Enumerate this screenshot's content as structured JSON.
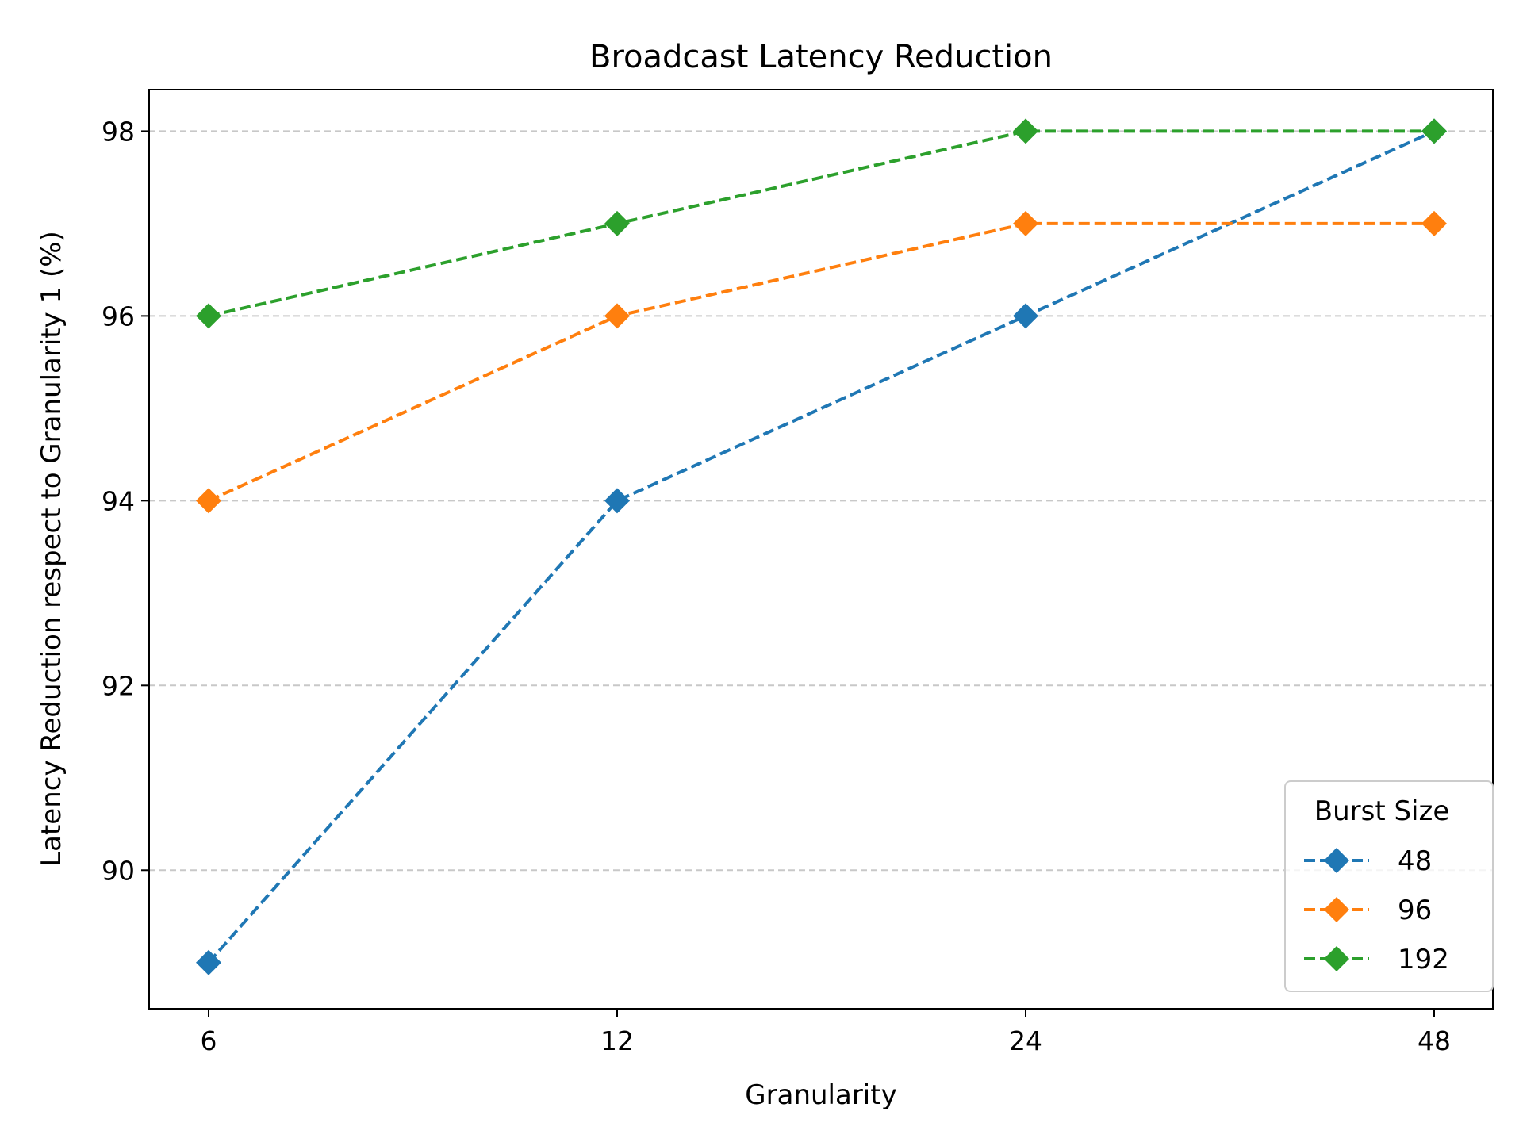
{
  "chart_data": {
    "type": "line",
    "title": "Broadcast Latency Reduction",
    "xlabel": "Granularity",
    "ylabel": "Latency Reduction respect to Granularity 1 (%)",
    "categories": [
      "6",
      "12",
      "24",
      "48"
    ],
    "y_ticks": [
      90,
      92,
      94,
      96,
      98
    ],
    "ylim": [
      88.5,
      98.45
    ],
    "grid": "horizontal dashed",
    "legend": {
      "title": "Burst Size",
      "placement": "lower-right"
    },
    "series": [
      {
        "name": "48",
        "color": "#1f77b4",
        "marker": "diamond",
        "line_style": "dashed",
        "values": [
          89,
          94,
          96,
          98
        ]
      },
      {
        "name": "96",
        "color": "#ff7f0e",
        "marker": "diamond",
        "line_style": "dashed",
        "values": [
          94,
          96,
          97,
          97
        ]
      },
      {
        "name": "192",
        "color": "#2ca02c",
        "marker": "diamond",
        "line_style": "dashed",
        "values": [
          96,
          97,
          98,
          98
        ]
      }
    ]
  }
}
